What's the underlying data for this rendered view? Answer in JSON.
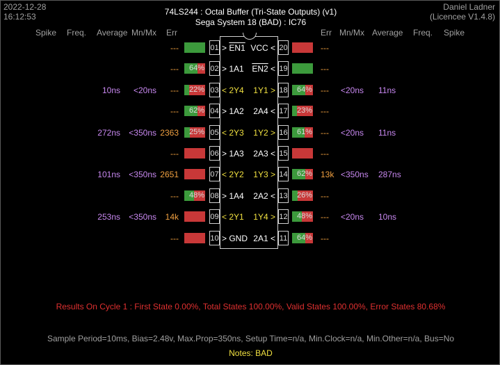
{
  "header": {
    "date": "2022-12-28",
    "time": "16:12:53",
    "title": "74LS244 :  Octal Buffer (Tri-State Outputs) (v1)",
    "subtitle": "Sega System 18 (BAD) : IC76",
    "author": "Daniel Ladner",
    "licence": "(Licencee V1.4.8)"
  },
  "columns_left": {
    "spike": "Spike",
    "freq": "Freq.",
    "average": "Average",
    "mnmx": "Mn/Mx",
    "err": "Err"
  },
  "columns_right": {
    "err": "Err",
    "mnmx": "Mn/Mx",
    "average": "Average",
    "freq": "Freq.",
    "spike": "Spike"
  },
  "colors": {
    "bar_green": "#3c9a3c",
    "bar_red": "#c83838",
    "purple": "#c888f0",
    "orange": "#f0a040",
    "yellow": "#f0e040",
    "results_red": "#e03030"
  },
  "rows": [
    {
      "left": {
        "average": "",
        "mnmx": "",
        "err": "---",
        "bar_state": "green",
        "bar_pct": 100,
        "bar_text": "",
        "pin": "01",
        "name": "> EN1",
        "name_color": "white",
        "overline": "EN1"
      },
      "right": {
        "name": "VCC <",
        "name_color": "white",
        "pin": "20",
        "bar_state": "red",
        "bar_pct": 100,
        "bar_text": "",
        "err": "---",
        "mnmx": "",
        "average": ""
      }
    },
    {
      "left": {
        "average": "",
        "mnmx": "",
        "err": "---",
        "bar_state": "green",
        "bar_pct": 64,
        "bar_text": "64%",
        "pin": "02",
        "name": "> 1A1",
        "name_color": "white"
      },
      "right": {
        "name": "EN2 <",
        "name_color": "white",
        "pin": "19",
        "bar_state": "green",
        "bar_pct": 100,
        "bar_text": "",
        "err": "---",
        "mnmx": "",
        "average": "",
        "overline": "EN2"
      }
    },
    {
      "left": {
        "average": "10ns",
        "mnmx": "<20ns",
        "err": "---",
        "bar_state": "green",
        "bar_pct": 22,
        "bar_text": "22%",
        "pin": "03",
        "name": "< 2Y4",
        "name_color": "yellow"
      },
      "right": {
        "name": "1Y1 >",
        "name_color": "yellow",
        "pin": "18",
        "bar_state": "green",
        "bar_pct": 64,
        "bar_text": "64%",
        "err": "---",
        "mnmx": "<20ns",
        "average": "11ns"
      }
    },
    {
      "left": {
        "average": "",
        "mnmx": "",
        "err": "---",
        "bar_state": "green",
        "bar_pct": 62,
        "bar_text": "62%",
        "pin": "04",
        "name": "> 1A2",
        "name_color": "white"
      },
      "right": {
        "name": "2A4 <",
        "name_color": "white",
        "pin": "17",
        "bar_state": "green",
        "bar_pct": 23,
        "bar_text": "23%",
        "err": "---",
        "mnmx": "",
        "average": ""
      }
    },
    {
      "left": {
        "average": "272ns",
        "mnmx": "<350ns",
        "err": "2363",
        "bar_state": "green",
        "bar_pct": 25,
        "bar_text": "25%",
        "pin": "05",
        "name": "< 2Y3",
        "name_color": "yellow"
      },
      "right": {
        "name": "1Y2 >",
        "name_color": "yellow",
        "pin": "16",
        "bar_state": "green",
        "bar_pct": 61,
        "bar_text": "61%",
        "err": "---",
        "mnmx": "<20ns",
        "average": "11ns"
      }
    },
    {
      "left": {
        "average": "",
        "mnmx": "",
        "err": "---",
        "bar_state": "red",
        "bar_pct": 100,
        "bar_text": "",
        "pin": "06",
        "name": "> 1A3",
        "name_color": "white"
      },
      "right": {
        "name": "2A3 <",
        "name_color": "white",
        "pin": "15",
        "bar_state": "red",
        "bar_pct": 100,
        "bar_text": "",
        "err": "---",
        "mnmx": "",
        "average": ""
      }
    },
    {
      "left": {
        "average": "101ns",
        "mnmx": "<350ns",
        "err": "2651",
        "bar_state": "red",
        "bar_pct": 100,
        "bar_text": "",
        "pin": "07",
        "name": "< 2Y2",
        "name_color": "yellow"
      },
      "right": {
        "name": "1Y3 >",
        "name_color": "yellow",
        "pin": "14",
        "bar_state": "green",
        "bar_pct": 62,
        "bar_text": "62%",
        "err": "13k",
        "mnmx": "<350ns",
        "average": "287ns"
      }
    },
    {
      "left": {
        "average": "",
        "mnmx": "",
        "err": "---",
        "bar_state": "green",
        "bar_pct": 48,
        "bar_text": "48%",
        "pin": "08",
        "name": "> 1A4",
        "name_color": "white"
      },
      "right": {
        "name": "2A2 <",
        "name_color": "white",
        "pin": "13",
        "bar_state": "green",
        "bar_pct": 26,
        "bar_text": "26%",
        "err": "---",
        "mnmx": "",
        "average": ""
      }
    },
    {
      "left": {
        "average": "253ns",
        "mnmx": "<350ns",
        "err": "14k",
        "bar_state": "red",
        "bar_pct": 100,
        "bar_text": "",
        "pin": "09",
        "name": "< 2Y1",
        "name_color": "yellow"
      },
      "right": {
        "name": "1Y4 >",
        "name_color": "yellow",
        "pin": "12",
        "bar_state": "green",
        "bar_pct": 48,
        "bar_text": "48%",
        "err": "---",
        "mnmx": "<20ns",
        "average": "10ns"
      }
    },
    {
      "left": {
        "average": "",
        "mnmx": "",
        "err": "---",
        "bar_state": "red",
        "bar_pct": 100,
        "bar_text": "",
        "pin": "10",
        "name": "> GND",
        "name_color": "white"
      },
      "right": {
        "name": "2A1 <",
        "name_color": "white",
        "pin": "11",
        "bar_state": "green",
        "bar_pct": 64,
        "bar_text": "64%",
        "err": "---",
        "mnmx": "",
        "average": ""
      }
    }
  ],
  "results": "Results On Cycle 1 :  First State 0.00%,  Total States 100.00%,  Valid States 100.00%,  Error States 80.68%",
  "sample_info": "Sample Period=10ms,  Bias=2.48v,  Max.Prop=350ns,  Setup Time=n/a,  Min.Clock=n/a,  Min.Other=n/a,  Bus=No",
  "notes_label": "Notes:",
  "notes_value": "BAD"
}
